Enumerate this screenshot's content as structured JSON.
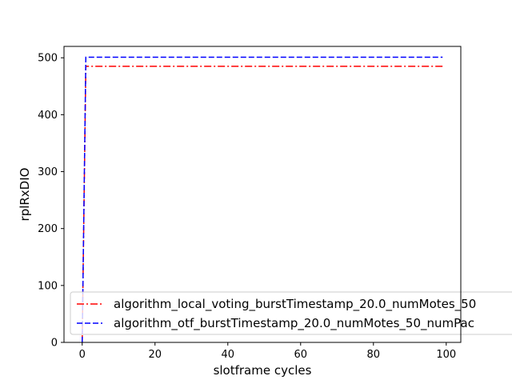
{
  "chart_data": {
    "type": "line",
    "title": "",
    "xlabel": "slotframe cycles",
    "ylabel": "rplRxDIO",
    "xlim": [
      -5,
      104
    ],
    "ylim": [
      0,
      520
    ],
    "xticks": [
      0,
      20,
      40,
      60,
      80,
      100
    ],
    "yticks": [
      0,
      100,
      200,
      300,
      400,
      500
    ],
    "grid": false,
    "legend_position": "lower-left",
    "series": [
      {
        "name": "algorithm_local_voting_burstTimestamp_20.0_numMotes_50",
        "color": "#ff0000",
        "style": "dashdot",
        "x": [
          0,
          1,
          99
        ],
        "y": [
          0,
          485,
          485
        ]
      },
      {
        "name": "algorithm_otf_burstTimestamp_20.0_numMotes_50_numPac",
        "color": "#0000ff",
        "style": "dashed",
        "x": [
          0,
          1,
          99
        ],
        "y": [
          0,
          501,
          501
        ]
      }
    ]
  }
}
